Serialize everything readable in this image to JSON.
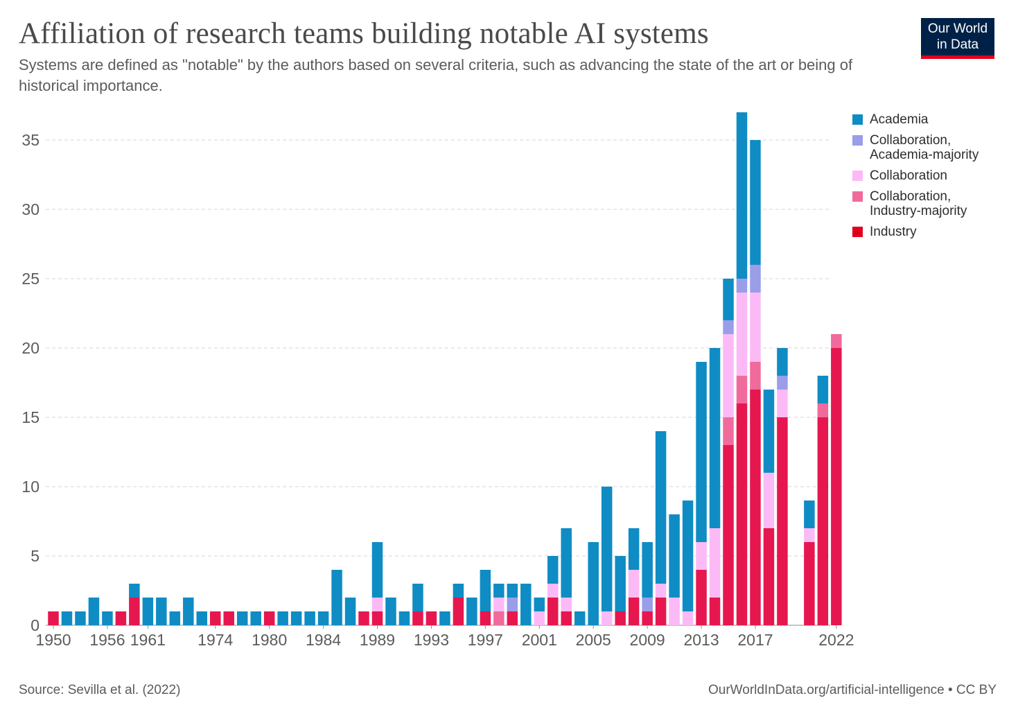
{
  "header": {
    "title": "Affiliation of research teams building notable AI systems",
    "subtitle": "Systems are defined as \"notable\" by the authors based on several criteria, such as advancing the state of the art or being of historical importance."
  },
  "logo": {
    "line1": "Our World",
    "line2": "in Data",
    "bg_color": "#002147",
    "accent_color": "#e0001b"
  },
  "footer": {
    "source": "Source: Sevilla et al. (2022)",
    "attribution": "OurWorldInData.org/artificial-intelligence • CC BY"
  },
  "chart_data": {
    "type": "bar",
    "stacked": true,
    "title": "Affiliation of research teams building notable AI systems",
    "xlabel": "",
    "ylabel": "",
    "ylim": [
      0,
      37
    ],
    "yticks": [
      0,
      5,
      10,
      15,
      20,
      25,
      30,
      35
    ],
    "grid": "horizontal dashed",
    "legend_position": "right",
    "x_tick_labels": [
      "1950",
      "1956",
      "1961",
      "1974",
      "1980",
      "1984",
      "1989",
      "1993",
      "1997",
      "2001",
      "2005",
      "2009",
      "2013",
      "2017",
      "2022"
    ],
    "x_tick_bar_index": [
      0,
      4,
      7,
      12,
      16,
      20,
      24,
      28,
      32,
      36,
      40,
      44,
      48,
      52,
      58
    ],
    "series": [
      {
        "name": "Industry",
        "color": "#e6174f",
        "values": [
          1,
          0,
          0,
          0,
          0,
          1,
          2,
          0,
          0,
          0,
          0,
          0,
          1,
          1,
          0,
          0,
          1,
          0,
          0,
          0,
          0,
          0,
          0,
          1,
          1,
          0,
          0,
          1,
          1,
          0,
          2,
          0,
          1,
          0,
          1,
          0,
          0,
          2,
          1,
          0,
          0,
          0,
          1,
          2,
          1,
          2,
          0,
          0,
          4,
          2,
          13,
          16,
          17,
          7,
          15,
          0,
          6,
          15,
          20
        ]
      },
      {
        "name": "Collaboration, Industry-majority",
        "color": "#f06b9b",
        "values": [
          0,
          0,
          0,
          0,
          0,
          0,
          0,
          0,
          0,
          0,
          0,
          0,
          0,
          0,
          0,
          0,
          0,
          0,
          0,
          0,
          0,
          0,
          0,
          0,
          0,
          0,
          0,
          0,
          0,
          0,
          0,
          0,
          0,
          1,
          0,
          0,
          0,
          0,
          0,
          0,
          0,
          0,
          0,
          0,
          0,
          0,
          0,
          0,
          0,
          0,
          2,
          2,
          2,
          0,
          0,
          0,
          0,
          1,
          1
        ]
      },
      {
        "name": "Collaboration",
        "color": "#fbbaf6",
        "values": [
          0,
          0,
          0,
          0,
          0,
          0,
          0,
          0,
          0,
          0,
          0,
          0,
          0,
          0,
          0,
          0,
          0,
          0,
          0,
          0,
          0,
          0,
          0,
          0,
          1,
          0,
          0,
          0,
          0,
          0,
          0,
          0,
          0,
          1,
          0,
          0,
          1,
          1,
          1,
          0,
          0,
          1,
          0,
          2,
          0,
          1,
          2,
          1,
          2,
          5,
          6,
          6,
          5,
          4,
          2,
          0,
          1,
          0,
          0
        ]
      },
      {
        "name": "Collaboration, Academia-majority",
        "color": "#9a9de8",
        "values": [
          0,
          0,
          0,
          0,
          0,
          0,
          0,
          0,
          0,
          0,
          0,
          0,
          0,
          0,
          0,
          0,
          0,
          0,
          0,
          0,
          0,
          0,
          0,
          0,
          0,
          0,
          0,
          0,
          0,
          0,
          0,
          0,
          0,
          0,
          1,
          0,
          0,
          0,
          0,
          0,
          0,
          0,
          0,
          0,
          1,
          0,
          0,
          0,
          0,
          0,
          1,
          1,
          2,
          0,
          1,
          0,
          0,
          0,
          0
        ]
      },
      {
        "name": "Academia",
        "color": "#0f8cc4",
        "values": [
          0,
          1,
          1,
          2,
          1,
          0,
          1,
          2,
          2,
          1,
          2,
          1,
          0,
          0,
          1,
          1,
          0,
          1,
          1,
          1,
          1,
          4,
          2,
          0,
          4,
          2,
          1,
          2,
          0,
          1,
          1,
          2,
          3,
          1,
          1,
          3,
          1,
          2,
          5,
          1,
          6,
          9,
          4,
          3,
          4,
          11,
          6,
          8,
          13,
          13,
          3,
          12,
          9,
          6,
          2,
          0,
          2,
          2,
          0
        ]
      }
    ]
  },
  "legend": [
    {
      "label_1": "Academia",
      "label_2": "",
      "color": "#0f8cc4"
    },
    {
      "label_1": "Collaboration,",
      "label_2": "Academia-majority",
      "color": "#9a9de8"
    },
    {
      "label_1": "Collaboration",
      "label_2": "",
      "color": "#fbbaf6"
    },
    {
      "label_1": "Collaboration,",
      "label_2": "Industry-majority",
      "color": "#f06b9b"
    },
    {
      "label_1": "Industry",
      "label_2": "",
      "color": "#e0001b"
    }
  ]
}
